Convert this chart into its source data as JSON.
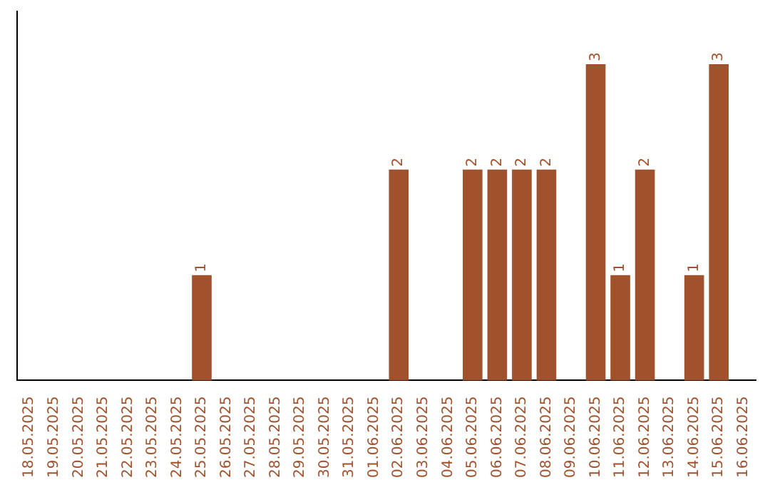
{
  "chart_data": {
    "type": "bar",
    "categories": [
      "18.05.2025",
      "19.05.2025",
      "20.05.2025",
      "21.05.2025",
      "22.05.2025",
      "23.05.2025",
      "24.05.2025",
      "25.05.2025",
      "26.05.2025",
      "27.05.2025",
      "28.05.2025",
      "29.05.2025",
      "30.05.2025",
      "31.05.2025",
      "01.06.2025",
      "02.06.2025",
      "03.06.2025",
      "04.06.2025",
      "05.06.2025",
      "06.06.2025",
      "07.06.2025",
      "08.06.2025",
      "09.06.2025",
      "10.06.2025",
      "11.06.2025",
      "12.06.2025",
      "13.06.2025",
      "14.06.2025",
      "15.06.2025",
      "16.06.2025"
    ],
    "values": [
      0,
      0,
      0,
      0,
      0,
      0,
      0,
      1,
      0,
      0,
      0,
      0,
      0,
      0,
      0,
      2,
      0,
      0,
      2,
      2,
      2,
      2,
      0,
      3,
      1,
      2,
      0,
      1,
      3,
      0
    ],
    "value_labels": [
      null,
      null,
      null,
      null,
      null,
      null,
      null,
      "1",
      null,
      null,
      null,
      null,
      null,
      null,
      null,
      "2",
      null,
      null,
      "2",
      "2",
      "2",
      "2",
      null,
      "3",
      "1",
      "2",
      null,
      "1",
      "3",
      null
    ],
    "color": "#a0522d",
    "grid": false,
    "legend": false,
    "tick_labels": "x"
  }
}
